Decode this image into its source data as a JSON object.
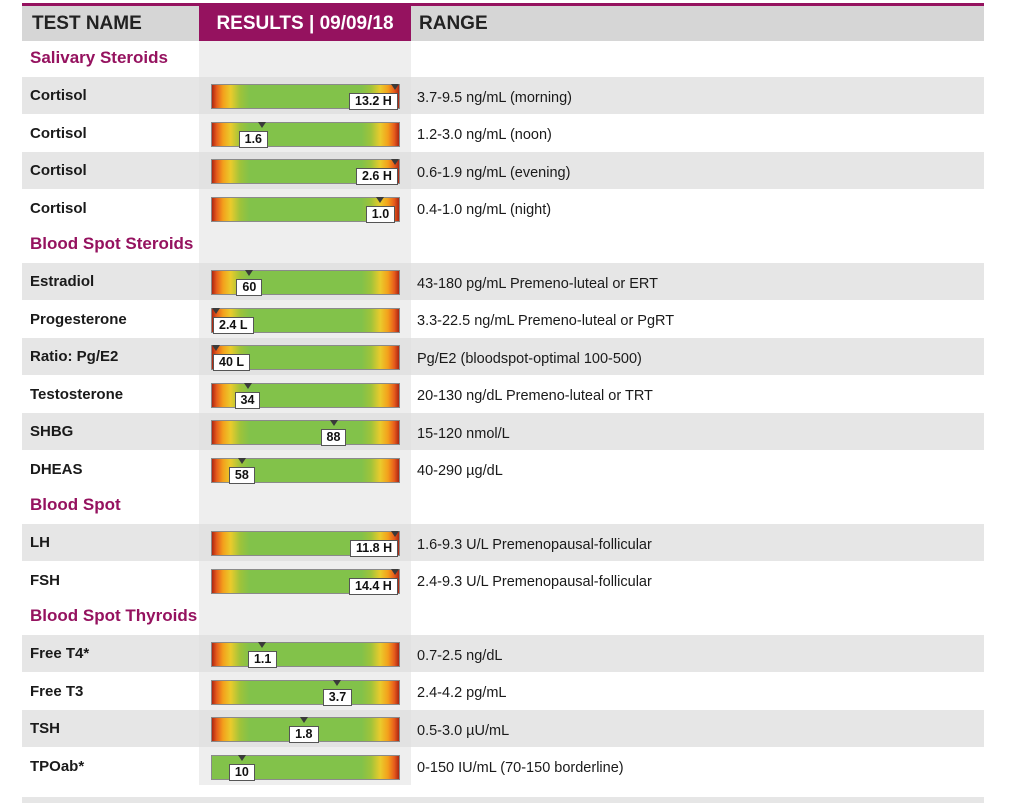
{
  "header": {
    "test_name": "TEST NAME",
    "results": "RESULTS | 09/09/18",
    "range": "RANGE"
  },
  "colors": {
    "accent": "#95125f",
    "row_shade": "#e6e6e6",
    "bar_green": "#82c24a"
  },
  "sections": [
    {
      "title": "Salivary Steroids",
      "tests": [
        {
          "name": "Cortisol",
          "value": "13.2 H",
          "position": 0.98,
          "marker": 0.98,
          "range": "3.7-9.5 ng/mL (morning)",
          "scale": "std"
        },
        {
          "name": "Cortisol",
          "value": "1.6",
          "position": 0.22,
          "marker": 0.27,
          "range": "1.2-3.0 ng/mL (noon)",
          "scale": "std"
        },
        {
          "name": "Cortisol",
          "value": "2.6 H",
          "position": 0.98,
          "marker": 0.98,
          "range": "0.6-1.9 ng/mL (evening)",
          "scale": "std"
        },
        {
          "name": "Cortisol",
          "value": "1.0",
          "position": 0.9,
          "marker": 0.9,
          "range": "0.4-1.0 ng/mL (night)",
          "scale": "std"
        }
      ]
    },
    {
      "title": "Blood Spot Steroids",
      "tests": [
        {
          "name": "Estradiol",
          "value": "60",
          "position": 0.2,
          "marker": 0.2,
          "range": "43-180 pg/mL Premeno-luteal or ERT",
          "scale": "std"
        },
        {
          "name": "Progesterone",
          "value": "2.4 L",
          "position": 0.02,
          "marker": 0.02,
          "range": "3.3-22.5 ng/mL Premeno-luteal or PgRT",
          "scale": "std"
        },
        {
          "name": "Ratio: Pg/E2",
          "value": "40 L",
          "position": 0.02,
          "marker": 0.02,
          "range": "Pg/E2 (bloodspot-optimal 100-500)",
          "scale": "std"
        },
        {
          "name": "Testosterone",
          "value": "34",
          "position": 0.19,
          "marker": 0.19,
          "range": "20-130 ng/dL Premeno-luteal or TRT",
          "scale": "std"
        },
        {
          "name": "SHBG",
          "value": "88",
          "position": 0.65,
          "marker": 0.65,
          "range": "15-120 nmol/L",
          "scale": "std"
        },
        {
          "name": "DHEAS",
          "value": "58",
          "position": 0.16,
          "marker": 0.16,
          "range": "40-290 µg/dL",
          "scale": "std"
        }
      ]
    },
    {
      "title": "Blood Spot",
      "tests": [
        {
          "name": "LH",
          "value": "11.8 H",
          "position": 0.98,
          "marker": 0.98,
          "range": "1.6-9.3 U/L Premenopausal-follicular",
          "scale": "std"
        },
        {
          "name": "FSH",
          "value": "14.4 H",
          "position": 0.98,
          "marker": 0.98,
          "range": "2.4-9.3 U/L Premenopausal-follicular",
          "scale": "std"
        }
      ]
    },
    {
      "title": "Blood Spot Thyroids",
      "tests": [
        {
          "name": "Free T4*",
          "value": "1.1",
          "position": 0.27,
          "marker": 0.27,
          "range": "0.7-2.5 ng/dL",
          "scale": "std"
        },
        {
          "name": "Free T3",
          "value": "3.7",
          "position": 0.67,
          "marker": 0.67,
          "range": "2.4-4.2 pg/mL",
          "scale": "std"
        },
        {
          "name": "TSH",
          "value": "1.8",
          "position": 0.49,
          "marker": 0.49,
          "range": "0.5-3.0 µU/mL",
          "scale": "std"
        },
        {
          "name": "TPOab*",
          "value": "10",
          "position": 0.16,
          "marker": 0.16,
          "range": "0-150 IU/mL (70-150 borderline)",
          "scale": "lowok"
        }
      ]
    }
  ]
}
